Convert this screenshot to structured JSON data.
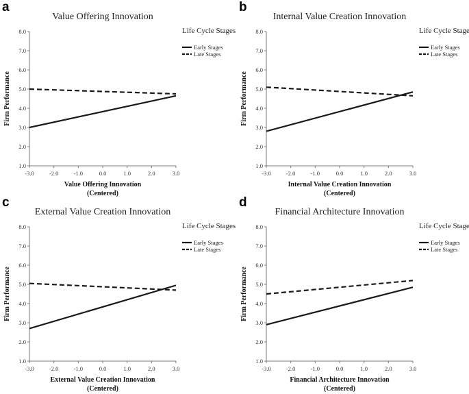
{
  "chart_data": [
    {
      "type": "line",
      "panel": "a",
      "title": "Value Offering Innovation",
      "xlabel": "Value Offering Innovation",
      "xlabel_sub": "(Centered)",
      "ylabel": "Firm Performance",
      "xlim": [
        -3.0,
        3.0
      ],
      "ylim": [
        1.0,
        8.0
      ],
      "x_ticks": [
        "-3.0",
        "-2.0",
        "-1.0",
        "0.0",
        "1.0",
        "2.0",
        "3.0"
      ],
      "y_ticks": [
        "1.0",
        "2.0",
        "3.0",
        "4.0",
        "5.0",
        "6.0",
        "7.0",
        "8.0"
      ],
      "legend_title": "Life Cycle Stages",
      "series": [
        {
          "name": "Early Stages",
          "style": "solid",
          "x": [
            -3.0,
            3.0
          ],
          "y": [
            3.0,
            4.65
          ]
        },
        {
          "name": "Late Stages",
          "style": "dashed",
          "x": [
            -3.0,
            3.0
          ],
          "y": [
            5.0,
            4.75
          ]
        }
      ]
    },
    {
      "type": "line",
      "panel": "b",
      "title": "Internal Value Creation Innovation",
      "xlabel": "Internal Value Creation Innovation",
      "xlabel_sub": "(Centered)",
      "ylabel": "Firm Performance",
      "xlim": [
        -3.0,
        3.0
      ],
      "ylim": [
        1.0,
        8.0
      ],
      "x_ticks": [
        "-3.0",
        "-2.0",
        "-1.0",
        "0.0",
        "1.0",
        "2.0",
        "3.0"
      ],
      "y_ticks": [
        "1.0",
        "2.0",
        "3.0",
        "4.0",
        "5.0",
        "6.0",
        "7.0",
        "8.0"
      ],
      "legend_title": "Life Cycle Stages",
      "series": [
        {
          "name": "Early Stages",
          "style": "solid",
          "x": [
            -3.0,
            3.0
          ],
          "y": [
            2.8,
            4.85
          ]
        },
        {
          "name": "Late Stages",
          "style": "dashed",
          "x": [
            -3.0,
            3.0
          ],
          "y": [
            5.1,
            4.65
          ]
        }
      ]
    },
    {
      "type": "line",
      "panel": "c",
      "title": "External Value Creation Innovation",
      "xlabel": "External Value Creation Innovation",
      "xlabel_sub": "(Centered)",
      "ylabel": "Firm Performance",
      "xlim": [
        -3.0,
        3.0
      ],
      "ylim": [
        1.0,
        8.0
      ],
      "x_ticks": [
        "-3.0",
        "-2.0",
        "-1.0",
        "0.0",
        "1.0",
        "2.0",
        "3.0"
      ],
      "y_ticks": [
        "1.0",
        "2.0",
        "3.0",
        "4.0",
        "5.0",
        "6.0",
        "7.0",
        "8.0"
      ],
      "legend_title": "Life Cycle Stages",
      "series": [
        {
          "name": "Early Stages",
          "style": "solid",
          "x": [
            -3.0,
            3.0
          ],
          "y": [
            2.7,
            4.95
          ]
        },
        {
          "name": "Late Stages",
          "style": "dashed",
          "x": [
            -3.0,
            3.0
          ],
          "y": [
            5.05,
            4.7
          ]
        }
      ]
    },
    {
      "type": "line",
      "panel": "d",
      "title": "Financial Architecture Innovation",
      "xlabel": "Financial Architecture Innovation",
      "xlabel_sub": "(Centered)",
      "ylabel": "Firm Performance",
      "xlim": [
        -3.0,
        3.0
      ],
      "ylim": [
        1.0,
        8.0
      ],
      "x_ticks": [
        "-3.0",
        "-2.0",
        "-1.0",
        "0.0",
        "1.0",
        "2.0",
        "3.0"
      ],
      "y_ticks": [
        "1.0",
        "2.0",
        "3.0",
        "4.0",
        "5.0",
        "6.0",
        "7.0",
        "8.0"
      ],
      "legend_title": "Life Cycle Stages",
      "series": [
        {
          "name": "Early Stages",
          "style": "solid",
          "x": [
            -3.0,
            3.0
          ],
          "y": [
            2.9,
            4.85
          ]
        },
        {
          "name": "Late Stages",
          "style": "dashed",
          "x": [
            -3.0,
            3.0
          ],
          "y": [
            4.5,
            5.2
          ]
        }
      ]
    }
  ]
}
